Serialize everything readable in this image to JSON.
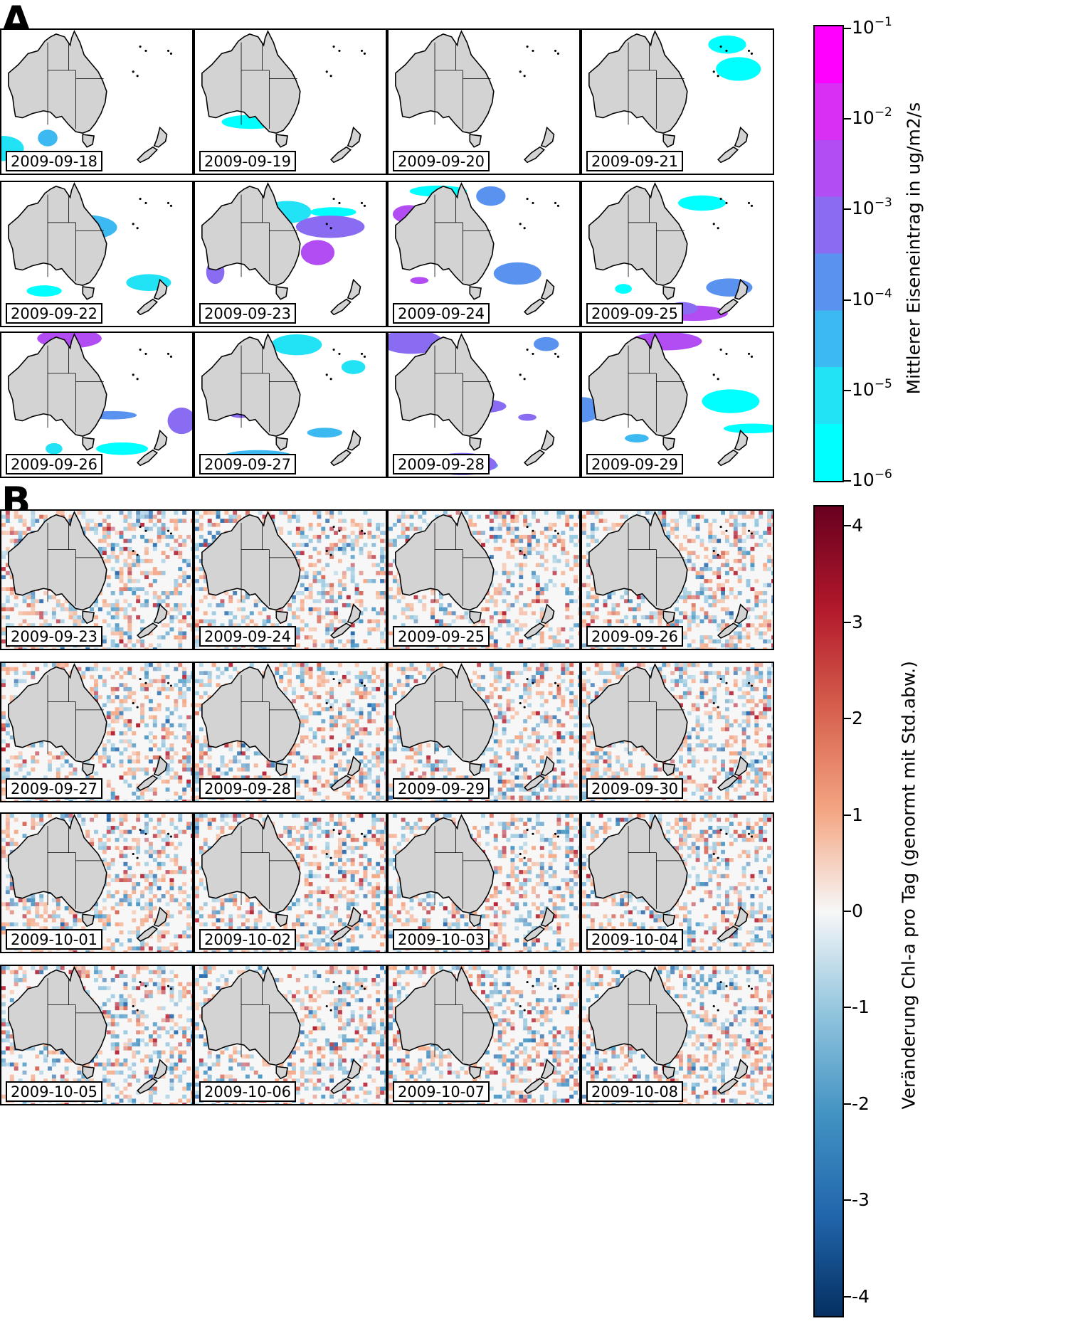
{
  "panel_a": {
    "letter": "A",
    "dates": [
      "2009-09-18",
      "2009-09-19",
      "2009-09-20",
      "2009-09-21",
      "2009-09-22",
      "2009-09-23",
      "2009-09-24",
      "2009-09-25",
      "2009-09-26",
      "2009-09-27",
      "2009-09-28",
      "2009-09-29"
    ],
    "colorbar": {
      "label": "Mittlerer Eiseneintrag in ug/m2/s",
      "scale": "log",
      "range": [
        "10^-6",
        "10^-1"
      ],
      "ticks": [
        {
          "base": "10",
          "exp": "−1"
        },
        {
          "base": "10",
          "exp": "−2"
        },
        {
          "base": "10",
          "exp": "−3"
        },
        {
          "base": "10",
          "exp": "−4"
        },
        {
          "base": "10",
          "exp": "−5"
        },
        {
          "base": "10",
          "exp": "−6"
        }
      ],
      "colors": [
        "#00ffff",
        "#22e2f5",
        "#3db9f2",
        "#5a92f0",
        "#8a6cf2",
        "#b24df3",
        "#d92ff4",
        "#ff00ff"
      ]
    }
  },
  "panel_b": {
    "letter": "B",
    "dates": [
      "2009-09-23",
      "2009-09-24",
      "2009-09-25",
      "2009-09-26",
      "2009-09-27",
      "2009-09-28",
      "2009-09-29",
      "2009-09-30",
      "2009-10-01",
      "2009-10-02",
      "2009-10-03",
      "2009-10-04",
      "2009-10-05",
      "2009-10-06",
      "2009-10-07",
      "2009-10-08"
    ],
    "colorbar": {
      "label": "Veränderung Chl-a pro Tag (genormt mit Std.abw.)",
      "range": [
        -4.2,
        4.2
      ],
      "ticks": [
        "4",
        "3",
        "2",
        "1",
        "0",
        "-1",
        "-2",
        "-3",
        "-4"
      ],
      "colors": [
        "#053061",
        "#2166ac",
        "#4393c3",
        "#92c5de",
        "#f7f7f7",
        "#f4a582",
        "#d6604d",
        "#b2182b",
        "#67001f"
      ]
    }
  },
  "colors": {
    "land": "#d3d3d3",
    "coast": "#000000"
  }
}
